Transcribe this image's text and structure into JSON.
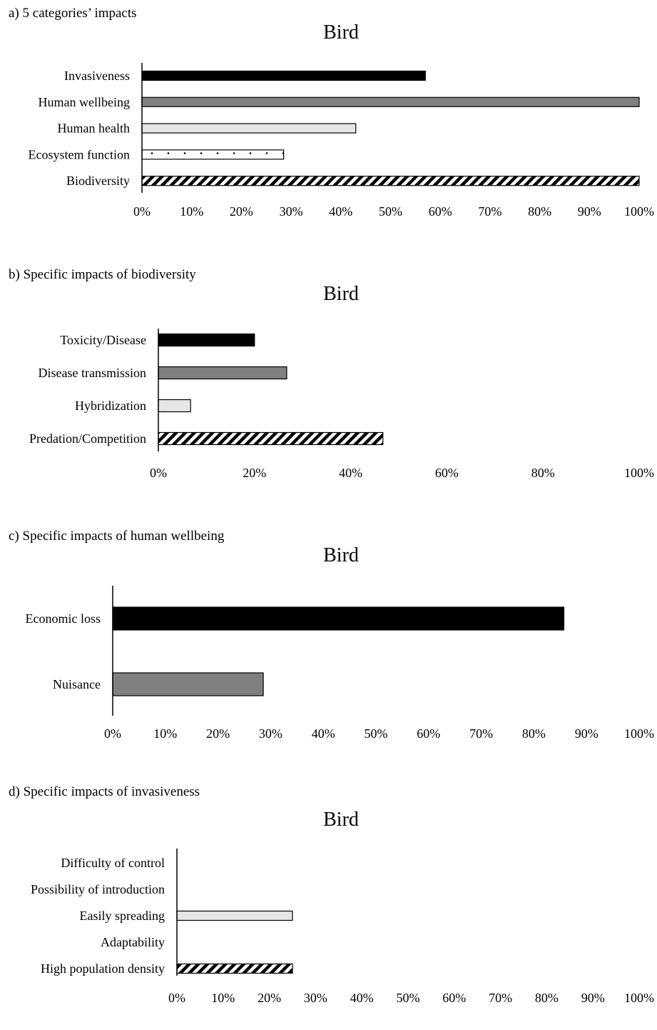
{
  "colors": {
    "black": "#000000",
    "gray": "#808080",
    "lightgray": "#e6e6e6",
    "white": "#ffffff"
  },
  "chart_data": [
    {
      "panel_label": "a) 5 categories’ impacts",
      "title": "Bird",
      "type": "bar",
      "orientation": "horizontal",
      "categories": [
        "Invasiveness",
        "Human wellbeing",
        "Human health",
        "Ecosystem function",
        "Biodiversity"
      ],
      "values": [
        57,
        100,
        43,
        28.5,
        100
      ],
      "fills": [
        "black",
        "gray",
        "lightgray",
        "dots",
        "hatch"
      ],
      "xlim": [
        0,
        100
      ],
      "xticks": [
        "0%",
        "10%",
        "20%",
        "30%",
        "40%",
        "50%",
        "60%",
        "70%",
        "80%",
        "90%",
        "100%"
      ],
      "xlabel": "",
      "ylabel": ""
    },
    {
      "panel_label": "b) Specific impacts of biodiversity",
      "title": "Bird",
      "type": "bar",
      "orientation": "horizontal",
      "categories": [
        "Toxicity/Disease",
        "Disease transmission",
        "Hybridization",
        "Predation/Competition"
      ],
      "values": [
        20,
        26.7,
        6.7,
        46.7
      ],
      "fills": [
        "black",
        "gray",
        "lightgray",
        "hatch"
      ],
      "xlim": [
        0,
        100
      ],
      "xticks": [
        "0%",
        "20%",
        "40%",
        "60%",
        "80%",
        "100%"
      ],
      "xlabel": "",
      "ylabel": ""
    },
    {
      "panel_label": "c) Specific impacts of human wellbeing",
      "title": "Bird",
      "type": "bar",
      "orientation": "horizontal",
      "categories": [
        "Economic loss",
        "Nuisance"
      ],
      "values": [
        85.7,
        28.6
      ],
      "fills": [
        "black",
        "gray"
      ],
      "xlim": [
        0,
        100
      ],
      "xticks": [
        "0%",
        "10%",
        "20%",
        "30%",
        "40%",
        "50%",
        "60%",
        "70%",
        "80%",
        "90%",
        "100%"
      ],
      "xlabel": "",
      "ylabel": ""
    },
    {
      "panel_label": "d) Specific impacts of invasiveness",
      "title": "Bird",
      "type": "bar",
      "orientation": "horizontal",
      "categories": [
        "Difficulty of control",
        "Possibility of introduction",
        "Easily spreading",
        "Adaptability",
        "High population density"
      ],
      "values": [
        0,
        0,
        25,
        0,
        25
      ],
      "fills": [
        "black",
        "gray",
        "lightgray",
        "dots",
        "hatch"
      ],
      "xlim": [
        0,
        100
      ],
      "xticks": [
        "0%",
        "10%",
        "20%",
        "30%",
        "40%",
        "50%",
        "60%",
        "70%",
        "80%",
        "90%",
        "100%"
      ],
      "xlabel": "",
      "ylabel": ""
    }
  ]
}
